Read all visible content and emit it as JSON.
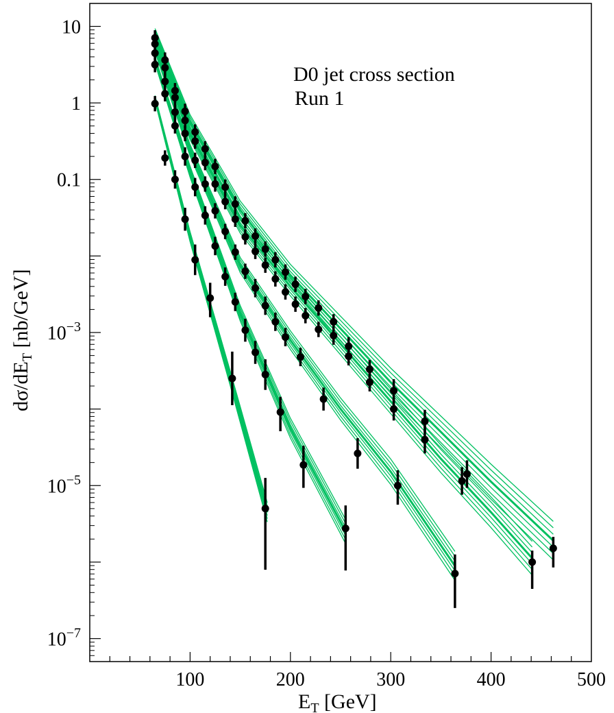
{
  "chart_data": {
    "type": "scatter",
    "title": "",
    "annotations": [
      "D0 jet cross section",
      "Run 1"
    ],
    "xlabel": "E_T [GeV]",
    "xlabel_main": "E",
    "xlabel_sub": "T",
    "xlabel_rest": " [GeV]",
    "ylabel": "dσ/dE_T [nb/GeV]",
    "ylabel_pre": "dσ/dE",
    "ylabel_sub": "T",
    "ylabel_rest": " [nb/GeV]",
    "xlim": [
      0,
      500
    ],
    "ylim_log10": [
      -7.3,
      1.3
    ],
    "yscale": "log",
    "grid": false,
    "x_ticks": [
      {
        "value": 100,
        "label": "100"
      },
      {
        "value": 200,
        "label": "200"
      },
      {
        "value": 300,
        "label": "300"
      },
      {
        "value": 400,
        "label": "400"
      },
      {
        "value": 500,
        "label": "500"
      }
    ],
    "y_ticks": [
      {
        "log": 1,
        "base": "10",
        "exp": ""
      },
      {
        "log": 0,
        "base": "1",
        "exp": ""
      },
      {
        "log": -1,
        "base": "0.1",
        "exp": ""
      },
      {
        "log": -3,
        "base": "10",
        "exp": "−3"
      },
      {
        "log": -5,
        "base": "10",
        "exp": "−5"
      },
      {
        "log": -7,
        "base": "10",
        "exp": "−7"
      }
    ],
    "colors": {
      "band": "#00c060",
      "points": "#000000"
    },
    "series": [
      {
        "points": [
          [
            65,
            -0.01
          ],
          [
            75,
            -0.72
          ],
          [
            85,
            -1.0
          ],
          [
            95,
            -1.52
          ],
          [
            105,
            -2.05
          ],
          [
            120,
            -2.55
          ],
          [
            142,
            -3.6
          ],
          [
            175,
            -5.3
          ]
        ],
        "err_up": [
          0.1,
          0.1,
          0.12,
          0.15,
          0.2,
          0.2,
          0.35,
          0.4
        ],
        "err_dn": [
          0.1,
          0.1,
          0.12,
          0.15,
          0.2,
          0.25,
          0.35,
          0.8
        ],
        "band": [
          [
            65,
            0.06
          ],
          [
            100,
            -1.75
          ],
          [
            140,
            -3.6
          ],
          [
            177,
            -5.35
          ]
        ]
      },
      {
        "points": [
          [
            65,
            0.5
          ],
          [
            75,
            0.12
          ],
          [
            85,
            -0.3
          ],
          [
            95,
            -0.7
          ],
          [
            105,
            -1.1
          ],
          [
            115,
            -1.47
          ],
          [
            125,
            -1.87
          ],
          [
            135,
            -2.27
          ],
          [
            145,
            -2.6
          ],
          [
            155,
            -2.97
          ],
          [
            165,
            -3.26
          ],
          [
            175,
            -3.55
          ],
          [
            190,
            -4.04
          ],
          [
            213,
            -4.73
          ],
          [
            255,
            -5.56
          ]
        ],
        "err_up": [
          0.1,
          0.1,
          0.1,
          0.12,
          0.12,
          0.12,
          0.12,
          0.12,
          0.12,
          0.15,
          0.15,
          0.2,
          0.2,
          0.25,
          0.3
        ],
        "err_dn": [
          0.1,
          0.1,
          0.1,
          0.12,
          0.12,
          0.12,
          0.12,
          0.12,
          0.12,
          0.15,
          0.15,
          0.2,
          0.25,
          0.3,
          0.55
        ],
        "band": [
          [
            65,
            0.56
          ],
          [
            100,
            -0.9
          ],
          [
            150,
            -2.75
          ],
          [
            200,
            -4.25
          ],
          [
            255,
            -5.6
          ]
        ]
      },
      {
        "points": [
          [
            65,
            0.65
          ],
          [
            75,
            0.28
          ],
          [
            85,
            -0.12
          ],
          [
            95,
            -0.4
          ],
          [
            105,
            -0.75
          ],
          [
            115,
            -1.06
          ],
          [
            125,
            -1.41
          ],
          [
            135,
            -1.68
          ],
          [
            145,
            -1.95
          ],
          [
            155,
            -2.2
          ],
          [
            165,
            -2.42
          ],
          [
            175,
            -2.65
          ],
          [
            185,
            -2.86
          ],
          [
            195,
            -3.06
          ],
          [
            210,
            -3.32
          ],
          [
            233,
            -3.87
          ],
          [
            267,
            -4.58
          ],
          [
            307,
            -5.0
          ],
          [
            364,
            -6.15
          ]
        ],
        "err_up": [
          0.1,
          0.1,
          0.1,
          0.1,
          0.1,
          0.1,
          0.1,
          0.1,
          0.1,
          0.1,
          0.12,
          0.12,
          0.12,
          0.12,
          0.12,
          0.15,
          0.2,
          0.2,
          0.25
        ],
        "err_dn": [
          0.1,
          0.1,
          0.1,
          0.1,
          0.1,
          0.1,
          0.1,
          0.1,
          0.1,
          0.1,
          0.12,
          0.12,
          0.12,
          0.12,
          0.12,
          0.15,
          0.2,
          0.25,
          0.45
        ],
        "band": [
          [
            65,
            0.72
          ],
          [
            100,
            -0.62
          ],
          [
            150,
            -2.12
          ],
          [
            200,
            -3.1
          ],
          [
            250,
            -4.0
          ],
          [
            300,
            -4.82
          ],
          [
            364,
            -6.05
          ]
        ]
      },
      {
        "points": [
          [
            65,
            0.77
          ],
          [
            75,
            0.46
          ],
          [
            85,
            0.07
          ],
          [
            95,
            -0.23
          ],
          [
            105,
            -0.5
          ],
          [
            115,
            -0.78
          ],
          [
            125,
            -1.06
          ],
          [
            135,
            -1.29
          ],
          [
            145,
            -1.52
          ],
          [
            155,
            -1.75
          ],
          [
            165,
            -1.94
          ],
          [
            175,
            -2.12
          ],
          [
            185,
            -2.3
          ],
          [
            195,
            -2.47
          ],
          [
            205,
            -2.63
          ],
          [
            215,
            -2.78
          ],
          [
            228,
            -2.96
          ],
          [
            243,
            -3.04
          ],
          [
            258,
            -3.31
          ],
          [
            279,
            -3.65
          ],
          [
            303,
            -4.0
          ],
          [
            334,
            -4.4
          ],
          [
            371,
            -4.94
          ],
          [
            441,
            -6.0
          ]
        ],
        "err_up": [
          0.1,
          0.1,
          0.1,
          0.1,
          0.1,
          0.1,
          0.1,
          0.1,
          0.1,
          0.1,
          0.1,
          0.1,
          0.1,
          0.1,
          0.1,
          0.1,
          0.1,
          0.12,
          0.12,
          0.12,
          0.15,
          0.18,
          0.18,
          0.15
        ],
        "err_dn": [
          0.1,
          0.1,
          0.1,
          0.1,
          0.1,
          0.1,
          0.1,
          0.1,
          0.1,
          0.1,
          0.1,
          0.1,
          0.1,
          0.1,
          0.1,
          0.1,
          0.1,
          0.12,
          0.12,
          0.12,
          0.15,
          0.18,
          0.18,
          0.35
        ],
        "band": [
          [
            65,
            0.84
          ],
          [
            100,
            -0.4
          ],
          [
            150,
            -1.6
          ],
          [
            200,
            -2.4
          ],
          [
            250,
            -3.15
          ],
          [
            300,
            -3.9
          ],
          [
            350,
            -4.65
          ],
          [
            400,
            -5.35
          ],
          [
            441,
            -5.95
          ]
        ]
      },
      {
        "points": [
          [
            65,
            0.85
          ],
          [
            75,
            0.56
          ],
          [
            85,
            0.16
          ],
          [
            95,
            -0.11
          ],
          [
            105,
            -0.38
          ],
          [
            115,
            -0.6
          ],
          [
            125,
            -0.83
          ],
          [
            135,
            -1.1
          ],
          [
            145,
            -1.32
          ],
          [
            155,
            -1.54
          ],
          [
            165,
            -1.74
          ],
          [
            175,
            -1.91
          ],
          [
            185,
            -2.05
          ],
          [
            195,
            -2.21
          ],
          [
            205,
            -2.37
          ],
          [
            215,
            -2.53
          ],
          [
            228,
            -2.68
          ],
          [
            243,
            -2.86
          ],
          [
            258,
            -3.18
          ],
          [
            279,
            -3.48
          ],
          [
            303,
            -3.76
          ],
          [
            334,
            -4.16
          ],
          [
            376,
            -4.85
          ],
          [
            462,
            -5.82
          ]
        ],
        "err_up": [
          0.1,
          0.1,
          0.1,
          0.1,
          0.1,
          0.1,
          0.1,
          0.1,
          0.1,
          0.1,
          0.1,
          0.1,
          0.1,
          0.1,
          0.1,
          0.1,
          0.1,
          0.1,
          0.12,
          0.12,
          0.15,
          0.15,
          0.18,
          0.15
        ],
        "err_dn": [
          0.1,
          0.1,
          0.1,
          0.1,
          0.1,
          0.1,
          0.1,
          0.1,
          0.1,
          0.1,
          0.1,
          0.1,
          0.1,
          0.1,
          0.1,
          0.1,
          0.1,
          0.1,
          0.12,
          0.12,
          0.15,
          0.15,
          0.18,
          0.25
        ],
        "band": [
          [
            65,
            0.9
          ],
          [
            100,
            -0.25
          ],
          [
            150,
            -1.4
          ],
          [
            200,
            -2.25
          ],
          [
            250,
            -2.95
          ],
          [
            300,
            -3.65
          ],
          [
            350,
            -4.3
          ],
          [
            400,
            -4.95
          ],
          [
            462,
            -5.72
          ]
        ]
      }
    ]
  }
}
